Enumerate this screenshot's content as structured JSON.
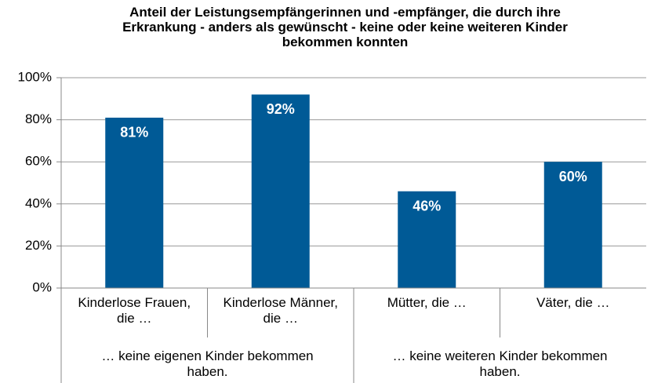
{
  "chart_data": {
    "type": "bar",
    "title": "Anteil der Leistungsempfängerinnen und -empfänger, die durch ihre Erkrankung - anders als gewünscht - keine oder keine weiteren Kinder bekommen konnten",
    "categories": [
      "Kinderlose Frauen, die …",
      "Kinderlose Männer, die …",
      "Mütter, die …",
      "Väter, die …"
    ],
    "groups": [
      "… keine eigenen Kinder bekommen haben.",
      "… keine weiteren Kinder bekommen haben."
    ],
    "values": [
      81,
      92,
      46,
      60
    ],
    "value_labels": [
      "81%",
      "92%",
      "46%",
      "60%"
    ],
    "color": "#005a96",
    "ylim": [
      0,
      100
    ],
    "yticks": [
      {
        "value": 0,
        "label": "0%"
      },
      {
        "value": 20,
        "label": "20%"
      },
      {
        "value": 40,
        "label": "40%"
      },
      {
        "value": 60,
        "label": "60%"
      },
      {
        "value": 80,
        "label": "80%"
      },
      {
        "value": 100,
        "label": "100%"
      }
    ],
    "grid": true
  }
}
